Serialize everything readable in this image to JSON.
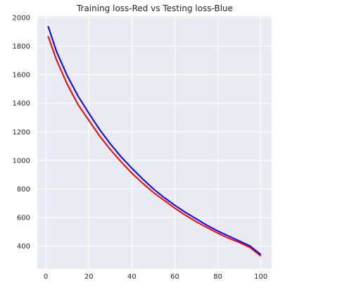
{
  "chart_data": {
    "type": "line",
    "title": "Training loss-Red vs Testing loss-Blue",
    "xlabel": "",
    "ylabel": "",
    "xlim": [
      -4,
      105
    ],
    "ylim": [
      240,
      2010
    ],
    "xticks": [
      0,
      20,
      40,
      60,
      80,
      100
    ],
    "yticks": [
      400,
      600,
      800,
      1000,
      1200,
      1400,
      1600,
      1800,
      2000
    ],
    "grid": true,
    "background": "#eaeaf2",
    "x": [
      1,
      5,
      10,
      15,
      20,
      25,
      30,
      35,
      40,
      45,
      50,
      55,
      60,
      65,
      70,
      75,
      80,
      85,
      90,
      95,
      100
    ],
    "series": [
      {
        "color": "#ff0000",
        "values": [
          1870,
          1700,
          1530,
          1390,
          1280,
          1170,
          1075,
          990,
          910,
          840,
          775,
          720,
          665,
          615,
          570,
          530,
          490,
          455,
          425,
          390,
          330
        ]
      },
      {
        "color": "#0000ff",
        "values": [
          1940,
          1760,
          1590,
          1450,
          1330,
          1215,
          1115,
          1025,
          945,
          870,
          800,
          740,
          685,
          635,
          590,
          545,
          505,
          470,
          435,
          400,
          340
        ]
      }
    ]
  }
}
